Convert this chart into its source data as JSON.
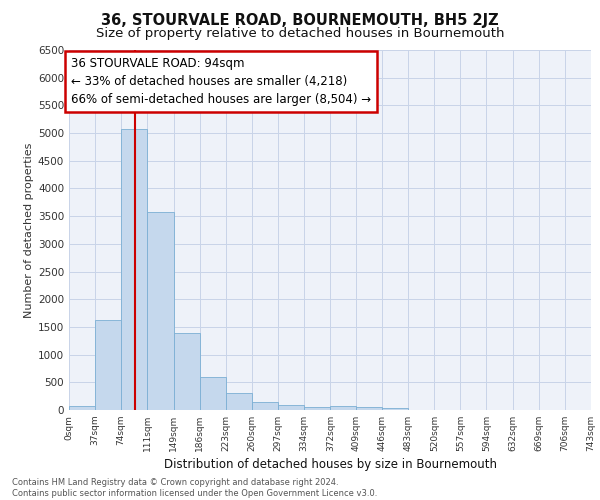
{
  "title": "36, STOURVALE ROAD, BOURNEMOUTH, BH5 2JZ",
  "subtitle": "Size of property relative to detached houses in Bournemouth",
  "xlabel": "Distribution of detached houses by size in Bournemouth",
  "ylabel": "Number of detached properties",
  "footnote1": "Contains HM Land Registry data © Crown copyright and database right 2024.",
  "footnote2": "Contains public sector information licensed under the Open Government Licence v3.0.",
  "annotation_title": "36 STOURVALE ROAD: 94sqm",
  "annotation_line1": "← 33% of detached houses are smaller (4,218)",
  "annotation_line2": "66% of semi-detached houses are larger (8,504) →",
  "property_size": 94,
  "bar_color": "#c5d8ed",
  "bar_edge_color": "#7bafd4",
  "vline_color": "#cc0000",
  "bg_color": "#eef2f9",
  "bin_edges": [
    0,
    37,
    74,
    111,
    149,
    186,
    223,
    260,
    297,
    334,
    372,
    409,
    446,
    483,
    520,
    557,
    594,
    632,
    669,
    706,
    743
  ],
  "bin_labels": [
    "0sqm",
    "37sqm",
    "74sqm",
    "111sqm",
    "149sqm",
    "186sqm",
    "223sqm",
    "260sqm",
    "297sqm",
    "334sqm",
    "372sqm",
    "409sqm",
    "446sqm",
    "483sqm",
    "520sqm",
    "557sqm",
    "594sqm",
    "632sqm",
    "669sqm",
    "706sqm",
    "743sqm"
  ],
  "bar_heights": [
    70,
    1630,
    5070,
    3580,
    1390,
    600,
    310,
    150,
    90,
    55,
    75,
    55,
    45,
    0,
    0,
    0,
    0,
    0,
    0,
    0
  ],
  "ylim": [
    0,
    6500
  ],
  "yticks": [
    0,
    500,
    1000,
    1500,
    2000,
    2500,
    3000,
    3500,
    4000,
    4500,
    5000,
    5500,
    6000,
    6500
  ],
  "grid_color": "#c8d4e8",
  "title_fontsize": 10.5,
  "subtitle_fontsize": 9.5,
  "annotation_fontsize": 8.5
}
